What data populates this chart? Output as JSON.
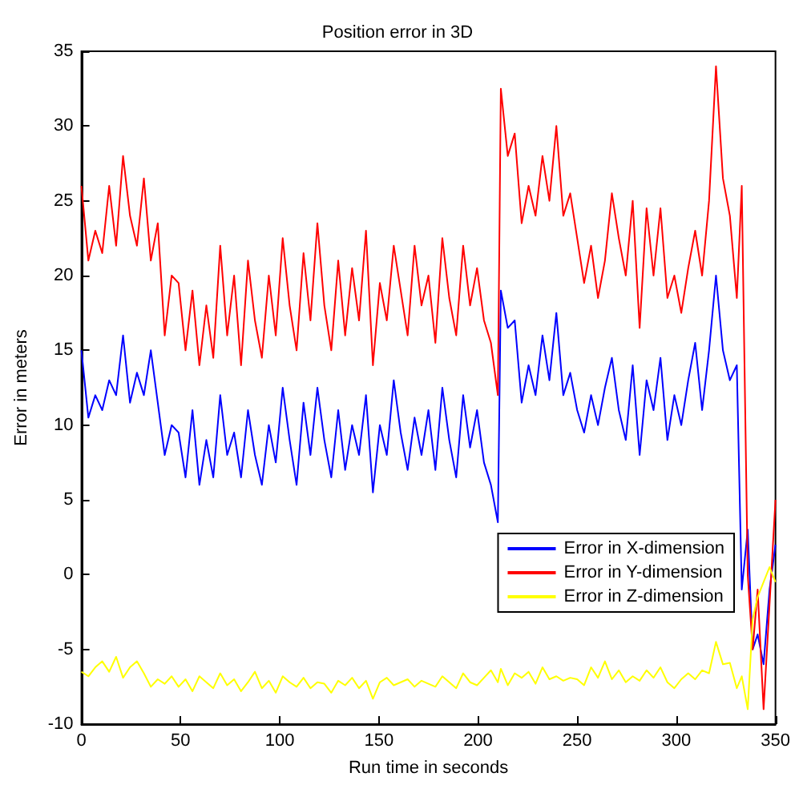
{
  "chart_data": {
    "type": "line",
    "title": "Position error in 3D",
    "xlabel": "Run time in seconds",
    "ylabel": "Error in meters",
    "x": [
      0,
      3.5,
      7,
      10.5,
      14,
      17.5,
      21,
      24.5,
      28,
      31.5,
      35,
      38.5,
      42,
      45.5,
      49,
      52.5,
      56,
      59.5,
      63,
      66.5,
      70,
      73.5,
      77,
      80.5,
      84,
      87.5,
      91,
      94.5,
      98,
      101.5,
      105,
      108.5,
      112,
      115.5,
      119,
      122.5,
      126,
      129.5,
      133,
      136.5,
      140,
      143.5,
      147,
      150.5,
      154,
      157.5,
      161,
      164.5,
      168,
      171.5,
      175,
      178.5,
      182,
      185.5,
      189,
      192.5,
      196,
      199.5,
      203,
      206.5,
      210,
      211.5,
      215,
      218.5,
      222,
      225.5,
      229,
      232.5,
      236,
      239.5,
      243,
      246.5,
      250,
      253.5,
      257,
      260.5,
      264,
      267.5,
      271,
      274.5,
      278,
      281.5,
      285,
      288.5,
      292,
      295.5,
      299,
      302.5,
      306,
      309.5,
      313,
      316.5,
      320,
      323.5,
      327,
      330.5,
      333,
      336,
      338.5,
      341,
      344,
      347,
      350
    ],
    "series": [
      {
        "name": "Error in X-dimension",
        "color": "#0000ff",
        "values": [
          15,
          10.5,
          12,
          11,
          13,
          12,
          16,
          11.5,
          13.5,
          12,
          15,
          11.5,
          8,
          10,
          9.5,
          6.5,
          11,
          6,
          9,
          6.5,
          12,
          8,
          9.5,
          6.5,
          11,
          8,
          6,
          10,
          7.5,
          12.5,
          9,
          6,
          11.5,
          8,
          12.5,
          9,
          6.5,
          11,
          7,
          10,
          8,
          12,
          5.5,
          10,
          8,
          13,
          9.5,
          7,
          10.5,
          8,
          11,
          7,
          12.5,
          9,
          6.5,
          12,
          8.5,
          11,
          7.5,
          6,
          3.5,
          19,
          16.5,
          17,
          11.5,
          14,
          12,
          16,
          13,
          17.5,
          12,
          13.5,
          11,
          9.5,
          12,
          10,
          12.5,
          14.5,
          11,
          9,
          14,
          8,
          13,
          11,
          14.5,
          9,
          12,
          10,
          13,
          15.5,
          11,
          15,
          20,
          15,
          13,
          14,
          -1,
          3,
          -5,
          -4,
          -6,
          -1,
          2
        ]
      },
      {
        "name": "Error in Y-dimension",
        "color": "#ff0000",
        "values": [
          26,
          21,
          23,
          21.5,
          26,
          22,
          28,
          24,
          22,
          26.5,
          21,
          23.5,
          16,
          20,
          19.5,
          15,
          19,
          14,
          18,
          14.5,
          22,
          16,
          20,
          14,
          21,
          17,
          14.5,
          20,
          16,
          22.5,
          18,
          15,
          21.5,
          17,
          23.5,
          18,
          15,
          21,
          16,
          20.5,
          17,
          23,
          14,
          19.5,
          17,
          22,
          19,
          16,
          22,
          18,
          20,
          15.5,
          22.5,
          18.5,
          16,
          22,
          18,
          20.5,
          17,
          15.5,
          12,
          32.5,
          28,
          29.5,
          23.5,
          26,
          24,
          28,
          25,
          30,
          24,
          25.5,
          22.5,
          19.5,
          22,
          18.5,
          21,
          25.5,
          22.5,
          20,
          25,
          16.5,
          24.5,
          20,
          24.5,
          18.5,
          20,
          17.5,
          20.5,
          23,
          20,
          25,
          34,
          26.5,
          24,
          18.5,
          26,
          0,
          -5,
          -1,
          -9,
          -2,
          5
        ]
      },
      {
        "name": "Error in Z-dimension",
        "color": "#ffff00",
        "values": [
          -6.5,
          -6.8,
          -6.2,
          -5.8,
          -6.5,
          -5.5,
          -6.9,
          -6.2,
          -5.8,
          -6.6,
          -7.5,
          -7,
          -7.3,
          -6.8,
          -7.5,
          -7,
          -7.8,
          -6.8,
          -7.2,
          -7.6,
          -6.6,
          -7.4,
          -7,
          -7.8,
          -7.2,
          -6.5,
          -7.6,
          -7.1,
          -7.9,
          -6.8,
          -7.2,
          -7.5,
          -6.9,
          -7.6,
          -7.2,
          -7.3,
          -7.9,
          -7.1,
          -7.4,
          -6.9,
          -7.6,
          -7.1,
          -8.3,
          -7.2,
          -6.9,
          -7.4,
          -7.2,
          -7,
          -7.5,
          -7.1,
          -7.3,
          -7.5,
          -6.8,
          -7.2,
          -7.6,
          -6.6,
          -7.2,
          -7.4,
          -6.9,
          -6.4,
          -7.2,
          -6.3,
          -7.4,
          -6.6,
          -6.9,
          -6.5,
          -7.3,
          -6.2,
          -7,
          -6.8,
          -7.1,
          -6.9,
          -7,
          -7.4,
          -6.2,
          -6.9,
          -5.8,
          -7,
          -6.4,
          -7.2,
          -6.8,
          -7.1,
          -6.4,
          -6.9,
          -6.2,
          -7.2,
          -7.6,
          -7,
          -6.6,
          -7,
          -6.4,
          -6.6,
          -4.5,
          -6,
          -5.9,
          -7.6,
          -6.8,
          -9,
          -3,
          -1.5,
          -0.5,
          0.5,
          -0.5
        ]
      }
    ],
    "xlim": [
      0,
      350
    ],
    "xticks": [
      0,
      50,
      100,
      150,
      200,
      250,
      300,
      350
    ],
    "ylim": [
      -10,
      35
    ],
    "yticks": [
      -10,
      -5,
      0,
      5,
      10,
      15,
      20,
      25,
      30,
      35
    ],
    "grid": false,
    "legend": "bottom right",
    "marker": "none",
    "line_style": "solid"
  }
}
